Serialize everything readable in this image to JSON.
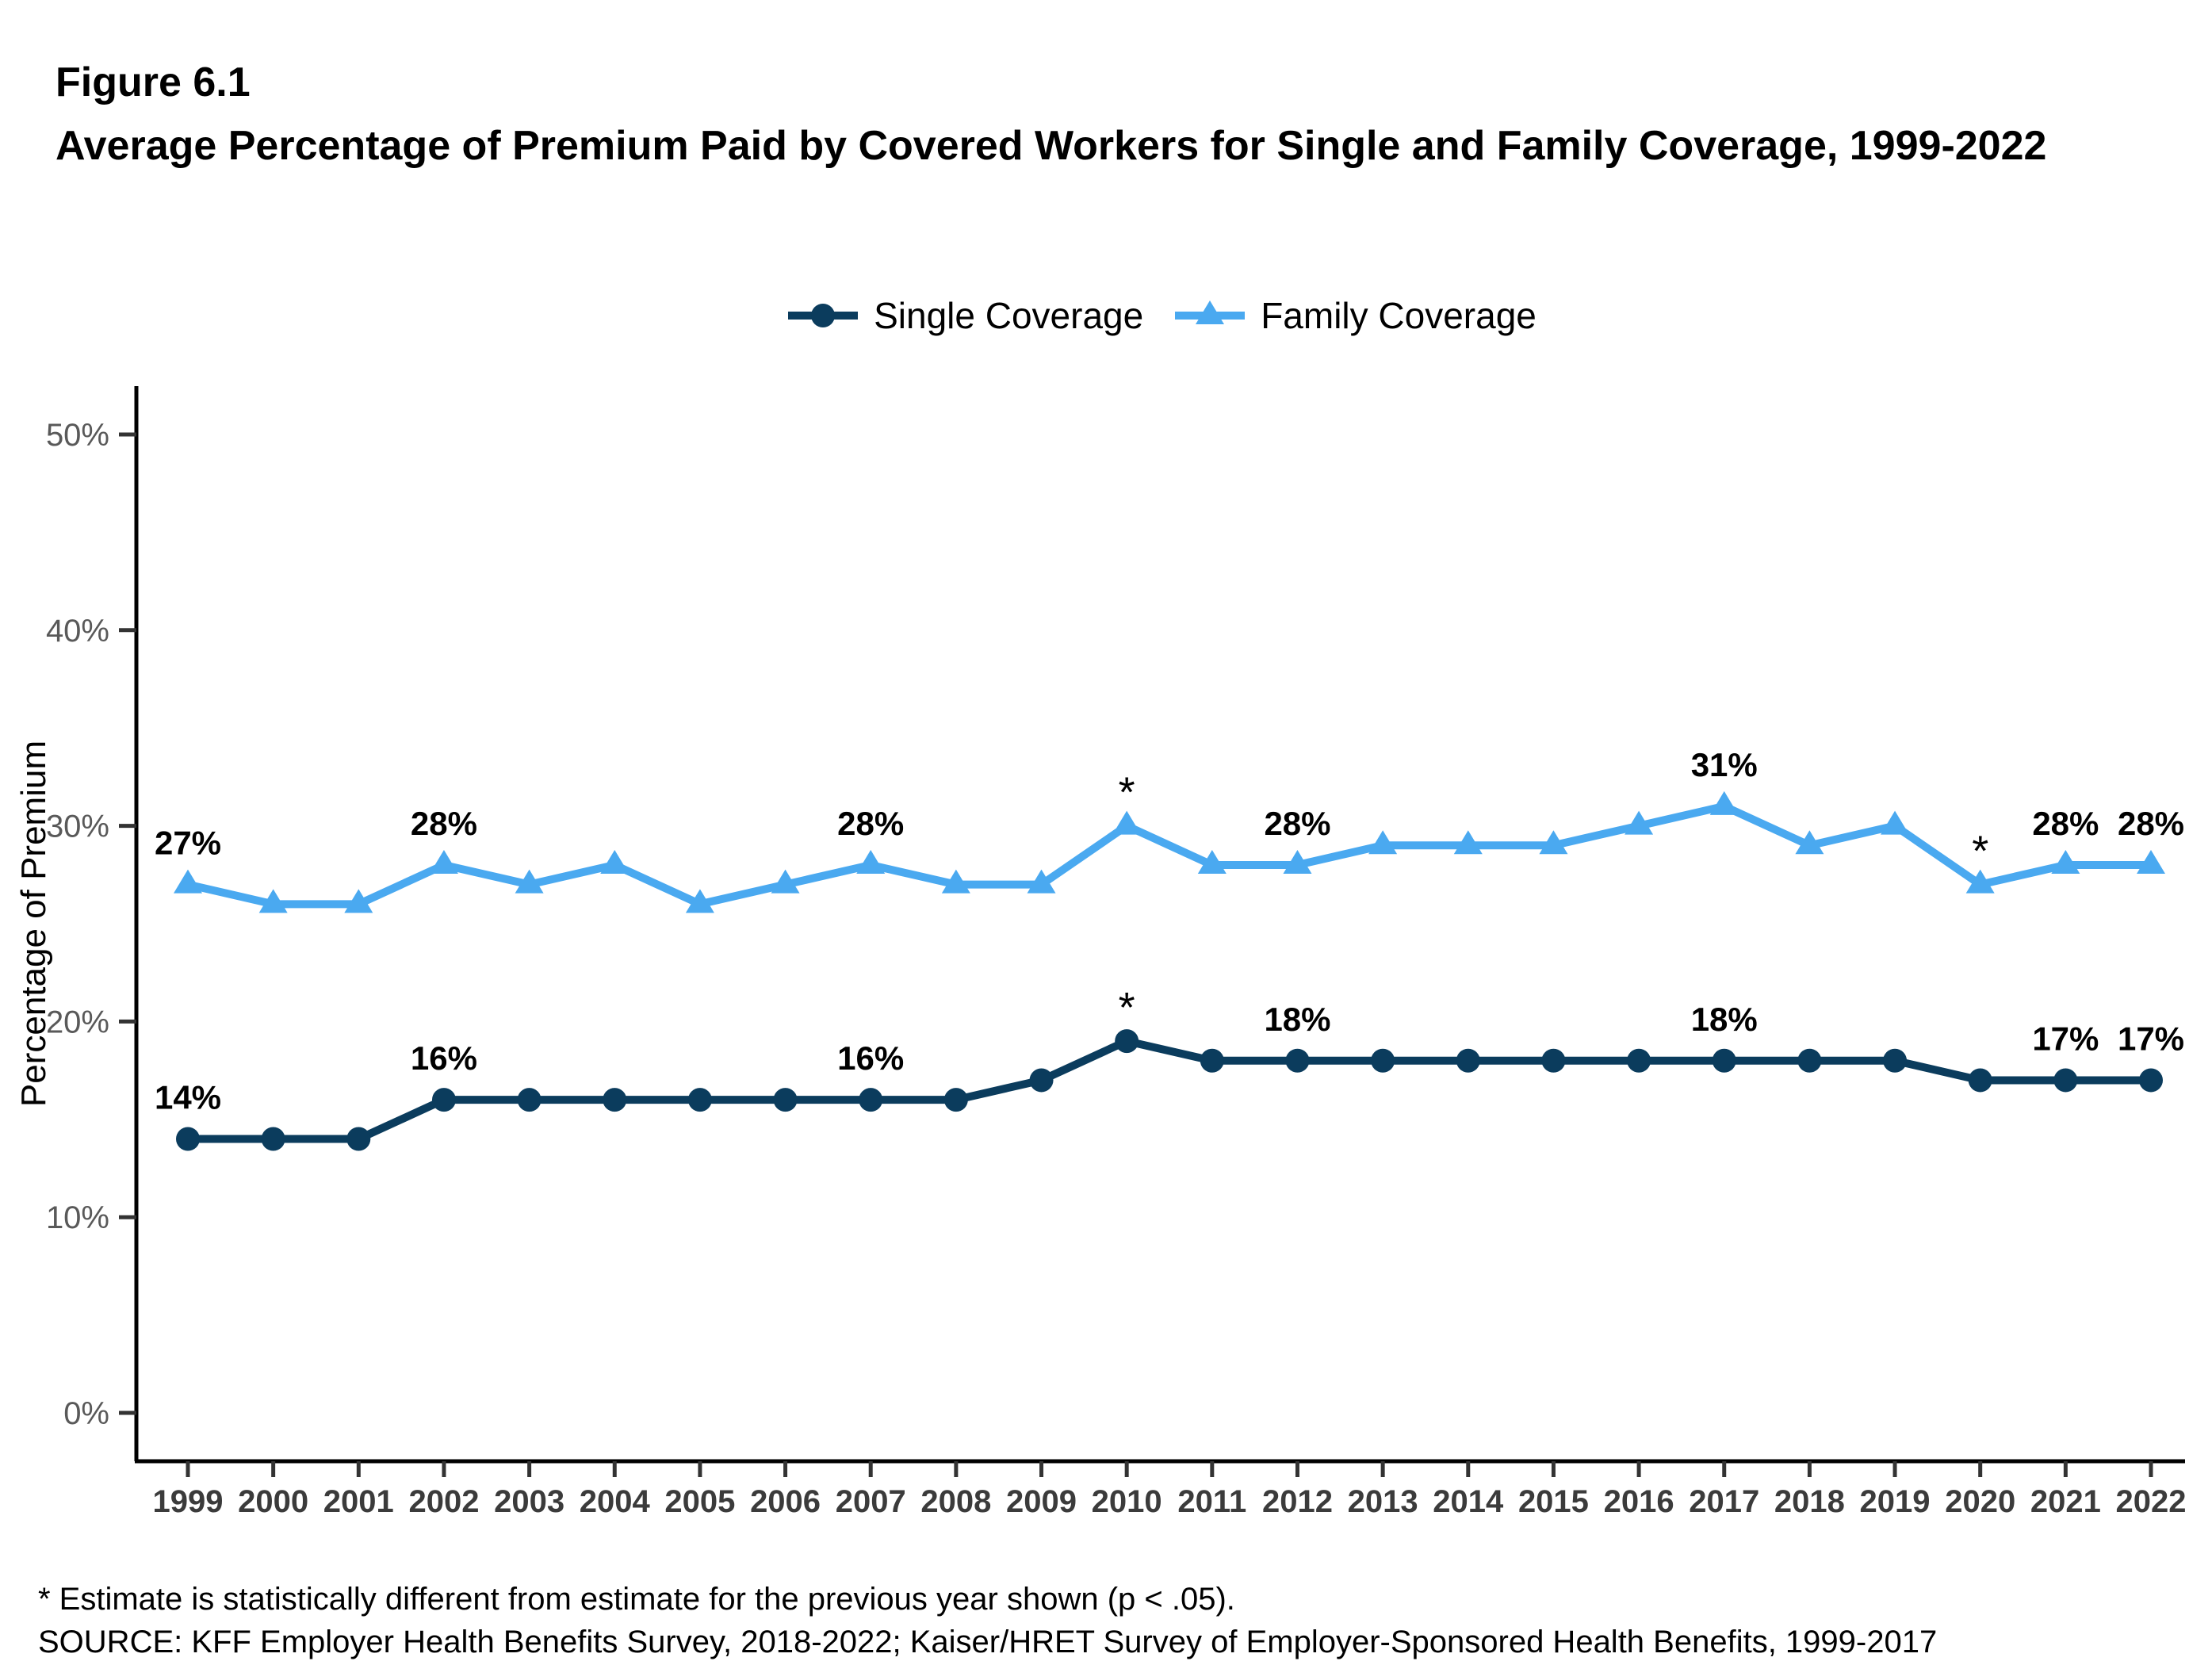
{
  "figure_label": "Figure 6.1",
  "title": "Average Percentage of Premium Paid by Covered Workers for Single and Family Coverage, 1999-2022",
  "footnotes": {
    "note": "* Estimate is statistically different from estimate for the previous year shown (p < .05).",
    "source": "SOURCE: KFF Employer Health Benefits Survey, 2018-2022; Kaiser/HRET Survey of Employer-Sponsored Health Benefits, 1999-2017"
  },
  "chart_data": {
    "type": "line",
    "x": [
      1999,
      2000,
      2001,
      2002,
      2003,
      2004,
      2005,
      2006,
      2007,
      2008,
      2009,
      2010,
      2011,
      2012,
      2013,
      2014,
      2015,
      2016,
      2017,
      2018,
      2019,
      2020,
      2021,
      2022
    ],
    "ylabel": "Percentage of Premium",
    "ylim": [
      0,
      50
    ],
    "yticks": [
      0,
      10,
      20,
      30,
      40,
      50
    ],
    "ytick_suffix": "%",
    "grid": false,
    "legend_position": "top",
    "series": [
      {
        "name": "Single Coverage",
        "color": "#0B3C5D",
        "marker": "circle",
        "values": [
          14,
          14,
          14,
          16,
          16,
          16,
          16,
          16,
          16,
          16,
          17,
          19,
          18,
          18,
          18,
          18,
          18,
          18,
          18,
          18,
          18,
          17,
          17,
          17
        ],
        "point_labels": {
          "1999": "14%",
          "2002": "16%",
          "2007": "16%",
          "2010": "*",
          "2012": "18%",
          "2017": "18%",
          "2021": "17%",
          "2022": "17%"
        }
      },
      {
        "name": "Family Coverage",
        "color": "#4AA9F0",
        "marker": "triangle",
        "values": [
          27,
          26,
          26,
          28,
          27,
          28,
          26,
          27,
          28,
          27,
          27,
          30,
          28,
          28,
          29,
          29,
          29,
          30,
          31,
          29,
          30,
          27,
          28,
          28
        ],
        "point_labels": {
          "1999": "27%",
          "2002": "28%",
          "2007": "28%",
          "2010": "*",
          "2012": "28%",
          "2017": "31%",
          "2020": "*",
          "2021": "28%",
          "2022": "28%"
        }
      }
    ]
  }
}
